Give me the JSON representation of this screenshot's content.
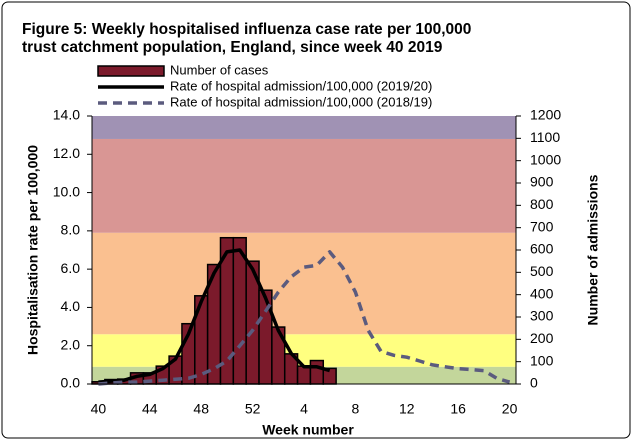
{
  "chart_data": {
    "type": "bar-line",
    "title": [
      "Figure 5: Weekly hospitalised influenza case rate per 100,000",
      "trust catchment population, England, since week 40 2019"
    ],
    "x_label": "Week number",
    "y_label": "Hospitalisation rate per 100,000",
    "y2_label": "Number of admissions",
    "categories": [
      "40",
      null,
      null,
      null,
      "44",
      null,
      null,
      null,
      "48",
      null,
      null,
      null,
      "52",
      null,
      null,
      null,
      "4",
      null,
      null,
      null,
      "8",
      null,
      null,
      null,
      "12",
      null,
      null,
      null,
      "16",
      null,
      null,
      null,
      "20"
    ],
    "ylim": [
      0,
      14
    ],
    "yticks": [
      {
        "value": 0,
        "label": "0.0"
      },
      {
        "value": 2,
        "label": "2.0"
      },
      {
        "value": 4,
        "label": "4.0"
      },
      {
        "value": 6,
        "label": "6.0"
      },
      {
        "value": 8,
        "label": "8.0"
      },
      {
        "value": 10,
        "label": "10.0"
      },
      {
        "value": 12,
        "label": "12.0"
      },
      {
        "value": 14,
        "label": "14.0"
      }
    ],
    "y2lim": [
      0,
      1200
    ],
    "y2ticks": [
      0,
      100,
      200,
      300,
      400,
      500,
      600,
      700,
      800,
      900,
      1000,
      1100,
      1200
    ],
    "thresholds": [
      {
        "from": 0,
        "to": 0.9,
        "color": "#c3d69b"
      },
      {
        "from": 0.9,
        "to": 2.6,
        "color": "#ffff80"
      },
      {
        "from": 2.6,
        "to": 7.9,
        "color": "#fac090"
      },
      {
        "from": 7.9,
        "to": 12.8,
        "color": "#d99694"
      },
      {
        "from": 12.8,
        "to": 14,
        "color": "#a092b4"
      }
    ],
    "series": [
      {
        "name": "Number of cases",
        "type": "bar",
        "axis": "y2",
        "color": "#7b1a2b",
        "values": [
          10,
          20,
          22,
          50,
          50,
          80,
          125,
          270,
          395,
          535,
          655,
          655,
          550,
          420,
          255,
          135,
          80,
          105,
          70,
          null,
          null,
          null,
          null,
          null,
          null,
          null,
          null,
          null,
          null,
          null,
          null,
          null,
          null
        ]
      },
      {
        "name": "Rate of hospital admission/100,000 (2019/20)",
        "type": "line",
        "color": "#000000",
        "dashed": false,
        "values": [
          0.1,
          0.15,
          0.2,
          0.4,
          0.5,
          0.8,
          1.3,
          2.6,
          4.3,
          5.8,
          6.9,
          7.0,
          6.0,
          4.5,
          2.8,
          1.6,
          0.9,
          0.9,
          0.7,
          null,
          null,
          null,
          null,
          null,
          null,
          null,
          null,
          null,
          null,
          null,
          null,
          null,
          null
        ]
      },
      {
        "name": "Rate of hospital admission/100,000 (2018/19)",
        "type": "line",
        "color": "#5b5b7e",
        "dashed": true,
        "values": [
          0.0,
          0.05,
          0.1,
          0.1,
          0.15,
          0.2,
          0.25,
          0.3,
          0.5,
          0.8,
          1.2,
          2.0,
          2.8,
          3.8,
          4.8,
          5.6,
          6.1,
          6.2,
          6.9,
          6.1,
          4.8,
          2.8,
          1.7,
          1.5,
          1.4,
          1.2,
          1.0,
          0.9,
          0.8,
          0.75,
          0.7,
          0.3,
          0.1
        ]
      }
    ]
  }
}
